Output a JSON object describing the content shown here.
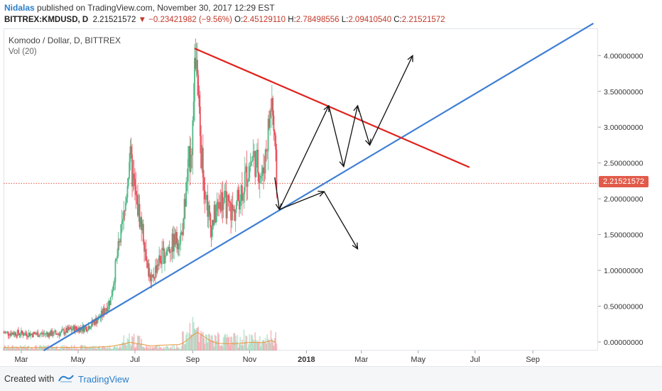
{
  "header": {
    "author": "Nidalas",
    "published_text": "published on TradingView.com, November 30, 2017 12:29 EST",
    "symbol": "BITTREX:KMDUSD, D",
    "last": "2.21521572",
    "change": "−0.23421982 (−9.56%)",
    "open_label": "O:",
    "open": "2.45129110",
    "high_label": "H:",
    "high": "2.78498556",
    "low_label": "L:",
    "low": "2.09410540",
    "close_label": "C:",
    "close": "2.21521572"
  },
  "legend": {
    "title": "Komodo / Dollar, D, BITTREX",
    "volume": "Vol (20)"
  },
  "price_badge": "2.21521572",
  "footer": {
    "created_with": "Created with",
    "brand": "TradingView"
  },
  "colors": {
    "up": "#53b987",
    "down": "#eb4d5c",
    "trend_support": "#3f7fd4",
    "trend_resistance": "#e0221c",
    "badge": "#e25b4a",
    "volume_ma": "#e59a3c"
  },
  "chart_data": {
    "type": "candlestick",
    "title": "Komodo / Dollar, D, BITTREX",
    "xlabel": "",
    "ylabel": "",
    "y_ticks": [
      "0.00000000",
      "0.50000000",
      "1.00000000",
      "1.50000000",
      "2.00000000",
      "2.50000000",
      "3.00000000",
      "3.50000000",
      "4.00000000"
    ],
    "y_tick_values": [
      0,
      0.5,
      1,
      1.5,
      2,
      2.5,
      3,
      3.5,
      4
    ],
    "ylim": [
      -0.12,
      4.38
    ],
    "x_tick_labels": [
      "Mar",
      "May",
      "Jul",
      "Sep",
      "Nov",
      "2018",
      "Mar",
      "May",
      "Jul",
      "Sep"
    ],
    "x_tick_dates": [
      "2017-03-01",
      "2017-05-01",
      "2017-07-01",
      "2017-09-01",
      "2017-11-01",
      "2018-01-01",
      "2018-03-01",
      "2018-05-01",
      "2018-07-01",
      "2018-09-01"
    ],
    "xlim": [
      "2017-02-10",
      "2018-11-10"
    ],
    "last_price": 2.21521572,
    "price_series_approx": [
      {
        "date": "2017-02-10",
        "close": 0.13
      },
      {
        "date": "2017-03-15",
        "close": 0.11
      },
      {
        "date": "2017-04-10",
        "close": 0.12
      },
      {
        "date": "2017-04-25",
        "close": 0.18
      },
      {
        "date": "2017-05-10",
        "close": 0.2
      },
      {
        "date": "2017-05-25",
        "close": 0.35
      },
      {
        "date": "2017-06-05",
        "close": 0.6
      },
      {
        "date": "2017-06-12",
        "close": 1.2
      },
      {
        "date": "2017-06-20",
        "close": 1.8
      },
      {
        "date": "2017-06-25",
        "close": 2.6
      },
      {
        "date": "2017-07-02",
        "close": 2.0
      },
      {
        "date": "2017-07-10",
        "close": 1.5
      },
      {
        "date": "2017-07-18",
        "close": 0.8
      },
      {
        "date": "2017-07-25",
        "close": 1.1
      },
      {
        "date": "2017-08-05",
        "close": 1.3
      },
      {
        "date": "2017-08-20",
        "close": 1.5
      },
      {
        "date": "2017-09-01",
        "close": 3.0
      },
      {
        "date": "2017-09-04",
        "close": 4.0
      },
      {
        "date": "2017-09-10",
        "close": 2.6
      },
      {
        "date": "2017-09-20",
        "close": 1.6
      },
      {
        "date": "2017-10-01",
        "close": 2.0
      },
      {
        "date": "2017-10-15",
        "close": 1.8
      },
      {
        "date": "2017-10-25",
        "close": 2.2
      },
      {
        "date": "2017-11-05",
        "close": 2.6
      },
      {
        "date": "2017-11-15",
        "close": 2.3
      },
      {
        "date": "2017-11-25",
        "close": 3.4
      },
      {
        "date": "2017-11-30",
        "close": 2.22
      }
    ],
    "trendlines": [
      {
        "name": "support",
        "from": {
          "date": "2017-03-25",
          "price": -0.12
        },
        "to": {
          "date": "2018-11-05",
          "price": 4.45
        }
      },
      {
        "name": "resistance",
        "from": {
          "date": "2017-09-03",
          "price": 4.1
        },
        "to": {
          "date": "2018-06-25",
          "price": 2.44
        }
      }
    ]
  }
}
